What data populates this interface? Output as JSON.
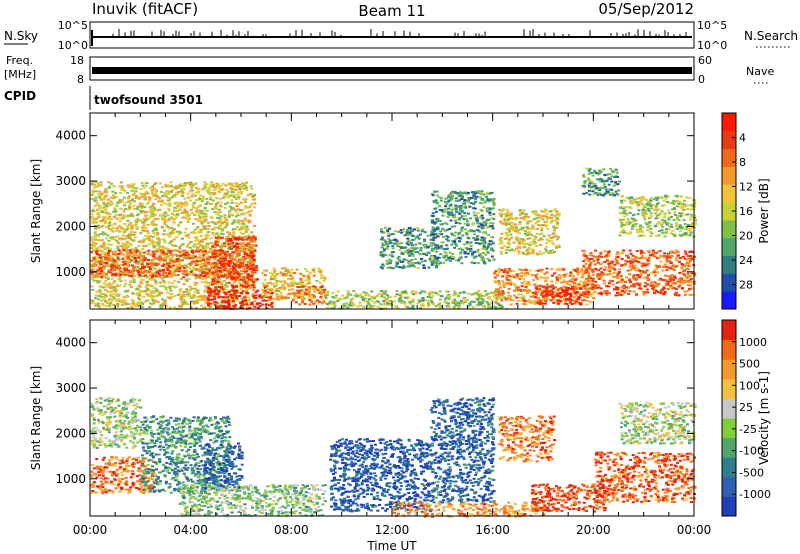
{
  "header": {
    "station": "Inuvik (fitACF)",
    "beam": "Beam 11",
    "date": "05/Sep/2012"
  },
  "top_panels": {
    "nsky_label": "N.Sky",
    "nsky_ticks": [
      "10^5",
      "10^0"
    ],
    "nsearch_label": "N.Search",
    "nsearch_ticks": [
      "10^5",
      "10^0"
    ],
    "freq_label": "Freq.",
    "freq_unit": "[MHz]",
    "freq_ticks": [
      "18",
      "8"
    ],
    "nave_label": "Nave",
    "nave_ticks": [
      "60",
      "0"
    ],
    "cpid_label": "CPID",
    "cpid_value": "twofsound 3501"
  },
  "chart_data": [
    {
      "type": "heatmap",
      "name": "power",
      "xlabel": "",
      "ylabel": "Slant Range [km]",
      "ylim": [
        180,
        4500
      ],
      "yticks": [
        1000,
        2000,
        3000,
        4000
      ],
      "xlim": [
        0,
        24
      ],
      "colorbar": {
        "label": "Power [dB]",
        "ticks": [
          "4",
          "8",
          "12",
          "16",
          "20",
          "24",
          "28"
        ],
        "colors": [
          "#1a1aff",
          "#1f4fa8",
          "#2f7f80",
          "#4fa56a",
          "#7fc04a",
          "#c9d235",
          "#f5c23a",
          "#f59a2a",
          "#f06a1a",
          "#ea3a12",
          "#ff1a00"
        ]
      },
      "regions": [
        {
          "t0": 0.0,
          "t1": 6.5,
          "r0": 200,
          "r1": 3000,
          "level": 0.55
        },
        {
          "t0": 0.0,
          "t1": 6.5,
          "r0": 900,
          "r1": 1500,
          "level": 0.8
        },
        {
          "t0": 4.6,
          "t1": 7.2,
          "r0": 200,
          "r1": 700,
          "level": 1.0
        },
        {
          "t0": 4.8,
          "t1": 6.6,
          "r0": 700,
          "r1": 1800,
          "level": 0.85
        },
        {
          "t0": 6.8,
          "t1": 9.3,
          "r0": 400,
          "r1": 1100,
          "level": 0.6
        },
        {
          "t0": 8.0,
          "t1": 9.3,
          "r0": 300,
          "r1": 700,
          "level": 0.75
        },
        {
          "t0": 9.3,
          "t1": 16.5,
          "r0": 200,
          "r1": 600,
          "level": 0.45
        },
        {
          "t0": 11.5,
          "t1": 13.8,
          "r0": 1100,
          "r1": 2000,
          "level": 0.3
        },
        {
          "t0": 13.5,
          "t1": 16.0,
          "r0": 1200,
          "r1": 2800,
          "level": 0.3
        },
        {
          "t0": 16.0,
          "t1": 20.0,
          "r0": 300,
          "r1": 1100,
          "level": 0.7
        },
        {
          "t0": 17.6,
          "t1": 19.5,
          "r0": 300,
          "r1": 700,
          "level": 0.95
        },
        {
          "t0": 16.2,
          "t1": 18.6,
          "r0": 1400,
          "r1": 2400,
          "level": 0.55
        },
        {
          "t0": 19.5,
          "t1": 24.0,
          "r0": 500,
          "r1": 1500,
          "level": 0.8
        },
        {
          "t0": 21.0,
          "t1": 24.0,
          "r0": 1800,
          "r1": 2700,
          "level": 0.45
        },
        {
          "t0": 19.5,
          "t1": 21.0,
          "r0": 2700,
          "r1": 3300,
          "level": 0.3
        }
      ]
    },
    {
      "type": "heatmap",
      "name": "velocity",
      "xlabel": "Time UT",
      "ylabel": "Slant Range [km]",
      "ylim": [
        180,
        4500
      ],
      "yticks": [
        1000,
        2000,
        3000,
        4000
      ],
      "xlim": [
        0,
        24
      ],
      "xticks": [
        "00:00",
        "04:00",
        "08:00",
        "12:00",
        "16:00",
        "20:00",
        "00:00"
      ],
      "colorbar": {
        "label": "Velocity [m s-1]",
        "ticks": [
          "1000",
          "500",
          "100",
          "25",
          "-25",
          "-100",
          "-500",
          "-1000"
        ],
        "colors": [
          "#1f3fb5",
          "#2f5fb0",
          "#2f7f8f",
          "#4fa56a",
          "#7fcf3a",
          "#c8c8c8",
          "#f5c040",
          "#f59a2a",
          "#f06a1a",
          "#e8200e"
        ]
      },
      "regions": [
        {
          "t0": 0.0,
          "t1": 2.0,
          "r0": 1700,
          "r1": 2800,
          "level": 0.5
        },
        {
          "t0": 0.0,
          "t1": 2.5,
          "r0": 700,
          "r1": 1500,
          "level": 0.82
        },
        {
          "t0": 2.0,
          "t1": 5.5,
          "r0": 700,
          "r1": 2400,
          "level": 0.3
        },
        {
          "t0": 4.5,
          "t1": 6.0,
          "r0": 800,
          "r1": 1800,
          "level": 0.12
        },
        {
          "t0": 3.5,
          "t1": 9.3,
          "r0": 200,
          "r1": 900,
          "level": 0.45
        },
        {
          "t0": 9.5,
          "t1": 13.5,
          "r0": 300,
          "r1": 1900,
          "level": 0.12
        },
        {
          "t0": 13.5,
          "t1": 16.0,
          "r0": 500,
          "r1": 2800,
          "level": 0.15
        },
        {
          "t0": 12.0,
          "t1": 18.0,
          "r0": 180,
          "r1": 500,
          "level": 0.75
        },
        {
          "t0": 16.2,
          "t1": 18.4,
          "r0": 1400,
          "r1": 2400,
          "level": 0.8
        },
        {
          "t0": 17.5,
          "t1": 20.5,
          "r0": 300,
          "r1": 900,
          "level": 0.92
        },
        {
          "t0": 20.0,
          "t1": 24.0,
          "r0": 500,
          "r1": 1600,
          "level": 0.85
        },
        {
          "t0": 21.0,
          "t1": 24.0,
          "r0": 1800,
          "r1": 2700,
          "level": 0.5
        }
      ]
    }
  ]
}
